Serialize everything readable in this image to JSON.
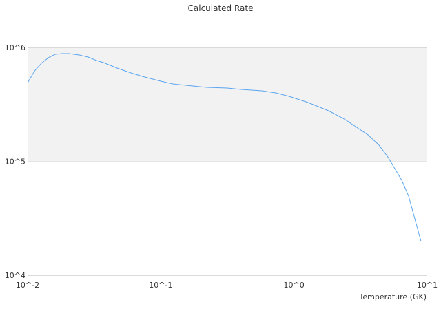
{
  "chart_data": {
    "type": "line",
    "title": "Calculated Rate",
    "xlabel": "Temperature (GK)",
    "ylabel": "",
    "x_scale": "log",
    "y_scale": "log",
    "xlim": [
      0.01,
      10
    ],
    "ylim": [
      10000,
      1000000
    ],
    "x_ticks": [
      {
        "value": 0.01,
        "label": "10^-2"
      },
      {
        "value": 0.1,
        "label": "10^-1"
      },
      {
        "value": 1,
        "label": "10^0"
      },
      {
        "value": 10,
        "label": "10^1"
      }
    ],
    "y_ticks": [
      {
        "value": 10000,
        "label": "10^4"
      },
      {
        "value": 100000,
        "label": "10^5"
      },
      {
        "value": 1000000,
        "label": "10^6"
      }
    ],
    "grid": false,
    "alternating_band_color": "#f2f2f2",
    "line_color": "#5aa5f0",
    "series": [
      {
        "x": [
          0.0101,
          0.0113,
          0.0127,
          0.0143,
          0.0161,
          0.0182,
          0.0204,
          0.0244,
          0.0285,
          0.0329,
          0.0371,
          0.047,
          0.0597,
          0.0757,
          0.1,
          0.122,
          0.174,
          0.221,
          0.316,
          0.401,
          0.574,
          0.728,
          0.924,
          1.27,
          1.82,
          2.39,
          3.59,
          4.34,
          5.07,
          6.44,
          7.25,
          8.98
        ],
        "y": [
          499000,
          623000,
          726000,
          811000,
          870000,
          882000,
          882000,
          858000,
          823000,
          768000,
          736000,
          659000,
          598000,
          550000,
          506000,
          479000,
          459000,
          446000,
          440000,
          428000,
          416000,
          399000,
          372000,
          329000,
          278000,
          235000,
          171000,
          139000,
          109000,
          68200,
          49500,
          19800
        ]
      }
    ]
  }
}
